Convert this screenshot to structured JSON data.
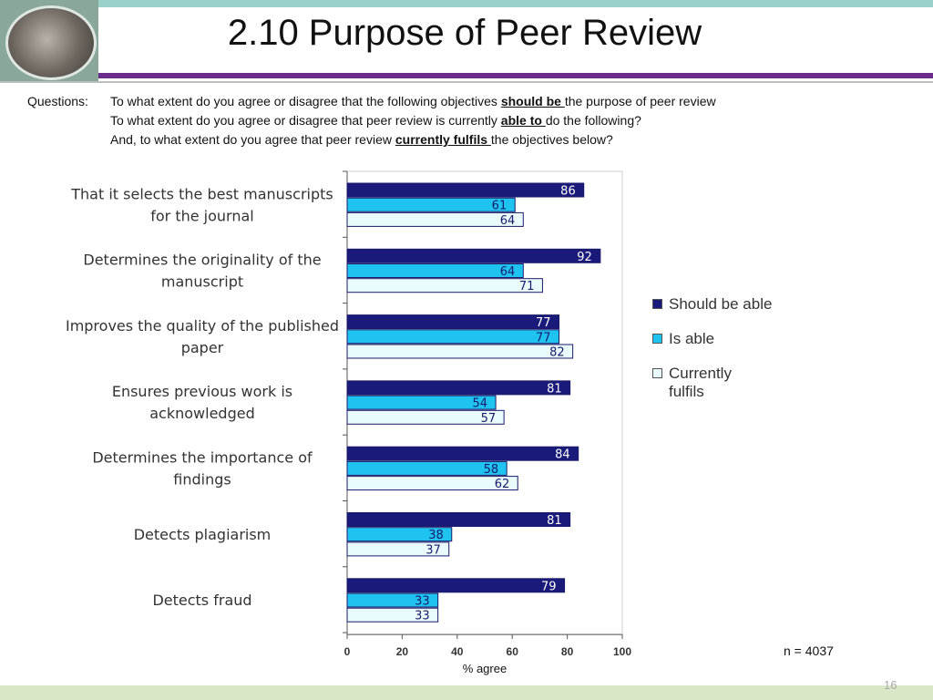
{
  "slide": {
    "title": "2.10 Purpose of Peer Review",
    "page_number": "16",
    "n_note": "n = 4037",
    "questions": {
      "label": "Questions:",
      "lines": [
        {
          "pre": "To what extent do you agree or disagree that the following objectives ",
          "emph": "should be ",
          "post": "the purpose of peer review"
        },
        {
          "pre": "To what extent do you agree or disagree that peer review is currently ",
          "emph": "able to ",
          "post": "do the following?"
        },
        {
          "pre": "And, to what extent do you agree that peer review ",
          "emph": "currently fulfils ",
          "post": "the objectives below?"
        }
      ]
    }
  },
  "chart_data": {
    "type": "bar",
    "orientation": "horizontal",
    "categories": [
      [
        "That it selects the best manuscripts",
        "for the journal"
      ],
      [
        "Determines the originality of the",
        "manuscript"
      ],
      [
        "Improves the quality of the published",
        "paper"
      ],
      [
        "Ensures previous work is",
        "acknowledged"
      ],
      [
        "Determines the importance of",
        "findings"
      ],
      [
        "Detects plagiarism"
      ],
      [
        "Detects fraud"
      ]
    ],
    "series": [
      {
        "name": "Should be able",
        "color": "#1a1a7a",
        "label_color": "#ffffff",
        "values": [
          86,
          92,
          77,
          81,
          84,
          81,
          79
        ]
      },
      {
        "name": "Is able",
        "color": "#1ec3f0",
        "label_color": "#1a1a6a",
        "values": [
          61,
          64,
          77,
          54,
          58,
          38,
          33
        ]
      },
      {
        "name": "Currently fulfils",
        "color": "#e9fbfc",
        "label_color": "#1a1a6a",
        "values": [
          64,
          71,
          82,
          57,
          62,
          37,
          33
        ]
      }
    ],
    "legend_lines": [
      [
        "Should be able"
      ],
      [
        "Is able"
      ],
      [
        "Currently",
        "fulfils"
      ]
    ],
    "xlabel": "% agree",
    "xlim": [
      0,
      100
    ],
    "xticks": [
      0,
      20,
      40,
      60,
      80,
      100
    ],
    "legend_position": "right",
    "grid": false
  }
}
